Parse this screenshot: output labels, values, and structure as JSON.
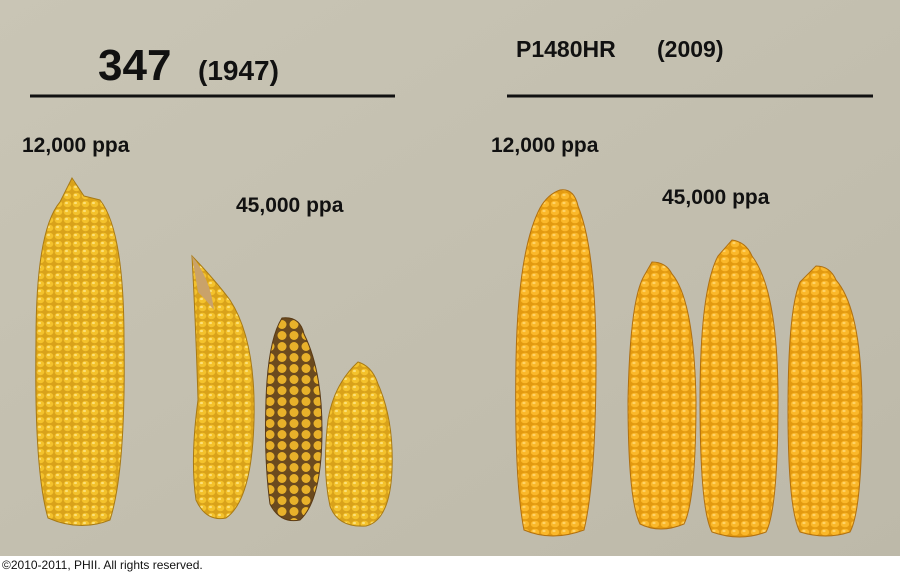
{
  "left": {
    "title": "347",
    "year": "(1947)",
    "low_density": "12,000 ppa",
    "high_density": "45,000 ppa"
  },
  "right": {
    "title": "P1480HR",
    "year": "(2009)",
    "low_density": "12,000 ppa",
    "high_density": "45,000 ppa"
  },
  "footer": "©2010-2011, PHII. All rights reserved."
}
